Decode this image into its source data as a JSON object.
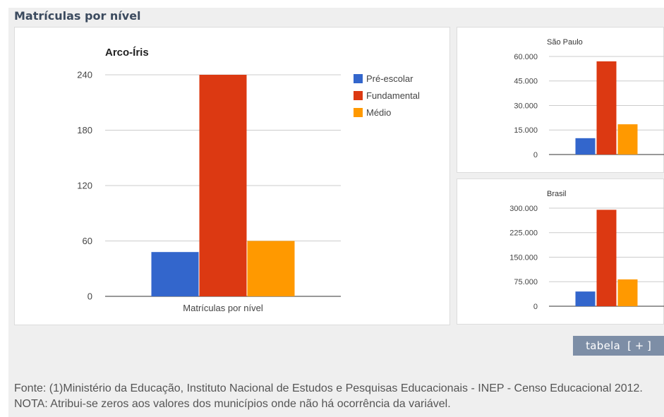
{
  "section_title": "Matrículas por nível",
  "table_button": {
    "label": "tabela",
    "icon": "[ + ]"
  },
  "footnote": "Fonte: (1)Ministério da Educação, Instituto Nacional de Estudos e Pesquisas Educacionais - INEP - Censo Educacional 2012. NOTA: Atribui-se zeros aos valores dos municípios onde não há ocorrência da variável.",
  "colors": {
    "preescolar": "#3366cc",
    "fundamental": "#dc3912",
    "medio": "#ff9900"
  },
  "chart_data": [
    {
      "type": "bar",
      "title": "Arco-Íris",
      "xlabel": "Matrículas por nível",
      "categories": [
        "Matrículas por nível"
      ],
      "series": [
        {
          "name": "Pré-escolar",
          "values": [
            48
          ],
          "color": "#3366cc"
        },
        {
          "name": "Fundamental",
          "values": [
            240
          ],
          "color": "#dc3912"
        },
        {
          "name": "Médio",
          "values": [
            60
          ],
          "color": "#ff9900"
        }
      ],
      "yticks": [
        "0",
        "60",
        "120",
        "180",
        "240"
      ],
      "ylim": [
        0,
        240
      ],
      "grid": true,
      "legend": "right"
    },
    {
      "type": "bar",
      "title": "São Paulo",
      "series": [
        {
          "name": "Pré-escolar",
          "values": [
            10000
          ],
          "color": "#3366cc"
        },
        {
          "name": "Fundamental",
          "values": [
            57000
          ],
          "color": "#dc3912"
        },
        {
          "name": "Médio",
          "values": [
            18500
          ],
          "color": "#ff9900"
        }
      ],
      "yticks": [
        "0",
        "15.000",
        "30.000",
        "45.000",
        "60.000"
      ],
      "ylim": [
        0,
        60000
      ],
      "grid": true,
      "legend": "none"
    },
    {
      "type": "bar",
      "title": "Brasil",
      "series": [
        {
          "name": "Pré-escolar",
          "values": [
            45000
          ],
          "color": "#3366cc"
        },
        {
          "name": "Fundamental",
          "values": [
            295000
          ],
          "color": "#dc3912"
        },
        {
          "name": "Médio",
          "values": [
            82000
          ],
          "color": "#ff9900"
        }
      ],
      "yticks": [
        "0",
        "75.000",
        "150.000",
        "225.000",
        "300.000"
      ],
      "ylim": [
        0,
        300000
      ],
      "grid": true,
      "legend": "none"
    }
  ]
}
